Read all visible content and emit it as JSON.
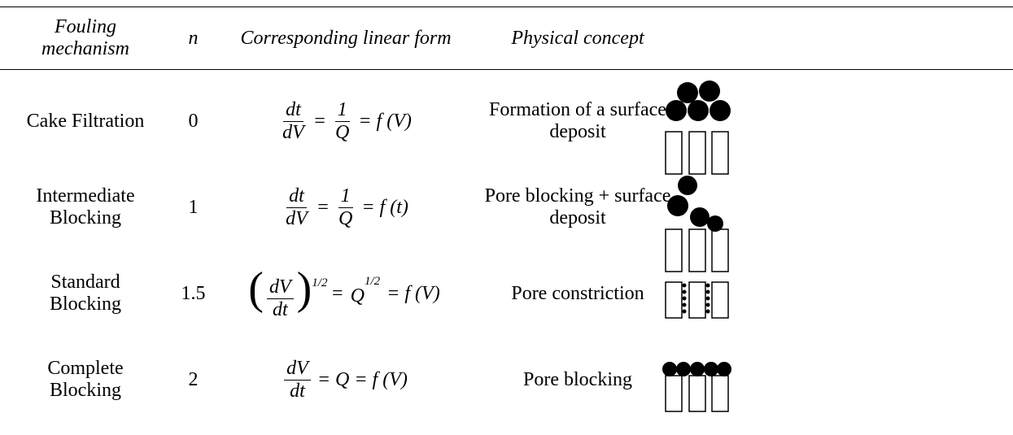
{
  "table": {
    "header": [
      "Fouling mechanism",
      "n",
      "Corresponding linear form",
      "Physical concept"
    ],
    "rows": [
      {
        "mechanism": "Cake Filtration",
        "n": 0,
        "formula": [
          {
            "num": "dt",
            "den": "dV"
          },
          "=",
          {
            "num": "1",
            "den": "Q"
          },
          "= f (V)"
        ],
        "concept": "Formation of a surface deposit"
      },
      {
        "mechanism": "Intermediate Blocking",
        "n": 1,
        "formula": [
          {
            "num": "dt",
            "den": "dV"
          },
          "=",
          {
            "num": "1",
            "den": "Q"
          },
          "= f (t)"
        ],
        "concept": "Pore blocking + surface deposit"
      },
      {
        "mechanism": "Standard Blocking",
        "n": 1.5,
        "formula": [
          {
            "num": "dV",
            "den": "dt",
            "sup": "1/2"
          },
          "=",
          {
            "base": "Q",
            "sup": "1/2"
          },
          "= f (V)"
        ],
        "concept": "Pore constriction"
      },
      {
        "mechanism": "Complete Blocking",
        "n": 2,
        "formula": [
          {
            "num": "dV",
            "den": "dt"
          },
          "= Q = f (V)"
        ],
        "concept": "Pore blocking"
      }
    ]
  }
}
